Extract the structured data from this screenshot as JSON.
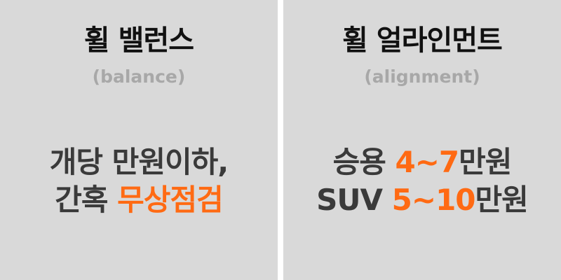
{
  "colors": {
    "background": "#d9d9d9",
    "divider": "#ffffff",
    "accent": "#ff6a13",
    "title": "#111111",
    "subtitle": "#a8a8a8",
    "body": "#3a3a3a"
  },
  "left": {
    "title": "휠 밸런스",
    "subtitle": "(balance)",
    "line1": "개당 만원이하,",
    "line2_prefix": "간혹 ",
    "line2_accent": "무상점검"
  },
  "right": {
    "title": "휠 얼라인먼트",
    "subtitle": "(alignment)",
    "line1_prefix": "승용 ",
    "line1_accent": "4~7",
    "line1_suffix": "만원",
    "line2_prefix": "SUV ",
    "line2_accent": "5~10",
    "line2_suffix": "만원"
  }
}
